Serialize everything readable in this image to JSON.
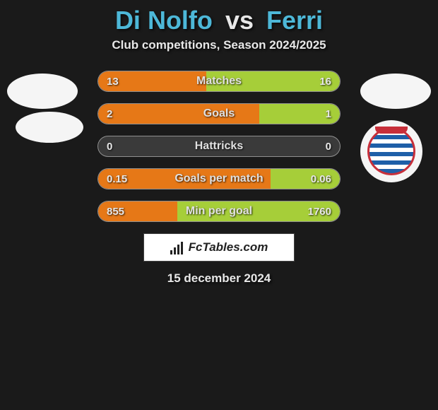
{
  "header": {
    "player1": "Di Nolfo",
    "vs": "vs",
    "player2": "Ferri"
  },
  "subtitle": "Club competitions, Season 2024/2025",
  "colors": {
    "left_bar": "#e67817",
    "right_bar": "#a6ce39",
    "background": "#3a3a3a"
  },
  "stats": [
    {
      "label": "Matches",
      "left_val": "13",
      "right_val": "16",
      "left_pct": 44.8,
      "right_pct": 55.2
    },
    {
      "label": "Goals",
      "left_val": "2",
      "right_val": "1",
      "left_pct": 66.7,
      "right_pct": 33.3
    },
    {
      "label": "Hattricks",
      "left_val": "0",
      "right_val": "0",
      "left_pct": 0.0,
      "right_pct": 0.0
    },
    {
      "label": "Goals per match",
      "left_val": "0.15",
      "right_val": "0.06",
      "left_pct": 71.4,
      "right_pct": 28.6
    },
    {
      "label": "Min per goal",
      "left_val": "855",
      "right_val": "1760",
      "left_pct": 32.7,
      "right_pct": 67.3
    }
  ],
  "brand": "FcTables.com",
  "date": "15 december 2024"
}
